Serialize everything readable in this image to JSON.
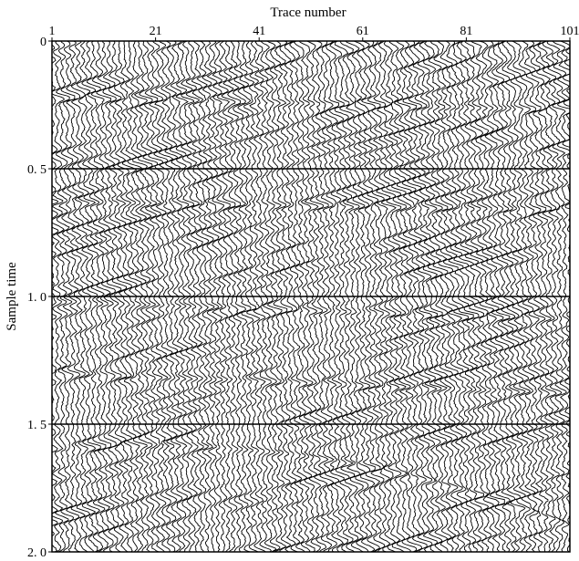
{
  "chart_data": {
    "type": "seismic-wiggle",
    "xlabel": "Trace number",
    "ylabel": "Sample time",
    "x_tick_labels": [
      "1",
      "21",
      "41",
      "61",
      "81",
      "101"
    ],
    "x_ticks": [
      1,
      21,
      41,
      61,
      81,
      101
    ],
    "y_tick_labels": [
      "0",
      "0. 5",
      "1. 0",
      "1. 5",
      "2. 0"
    ],
    "y_ticks": [
      0,
      0.5,
      1.0,
      1.5,
      2.0
    ],
    "xlim": [
      1,
      101
    ],
    "ylim": [
      0,
      2.0
    ],
    "y_axis_inverted": true,
    "x_axis_position": "top",
    "horizontal_gridlines_at": [
      0.5,
      1.0,
      1.5
    ],
    "num_traces": 101,
    "fill": "positive-amplitude black",
    "reflector_events": [
      {
        "t_at_trace1": 0.22,
        "t_at_trace101": 0.27,
        "curvature": 0.0
      },
      {
        "t_at_trace1": 0.63,
        "t_at_trace101": 0.66,
        "curvature": 0.0
      },
      {
        "t_at_trace1": 1.02,
        "t_at_trace101": 1.09,
        "curvature": 0.0
      },
      {
        "t_at_trace1": 1.3,
        "t_at_trace101": 1.38,
        "curvature": 0.0
      },
      {
        "t_at_trace1": 1.6,
        "t_at_trace101": 1.9,
        "curvature": -0.12
      }
    ]
  }
}
